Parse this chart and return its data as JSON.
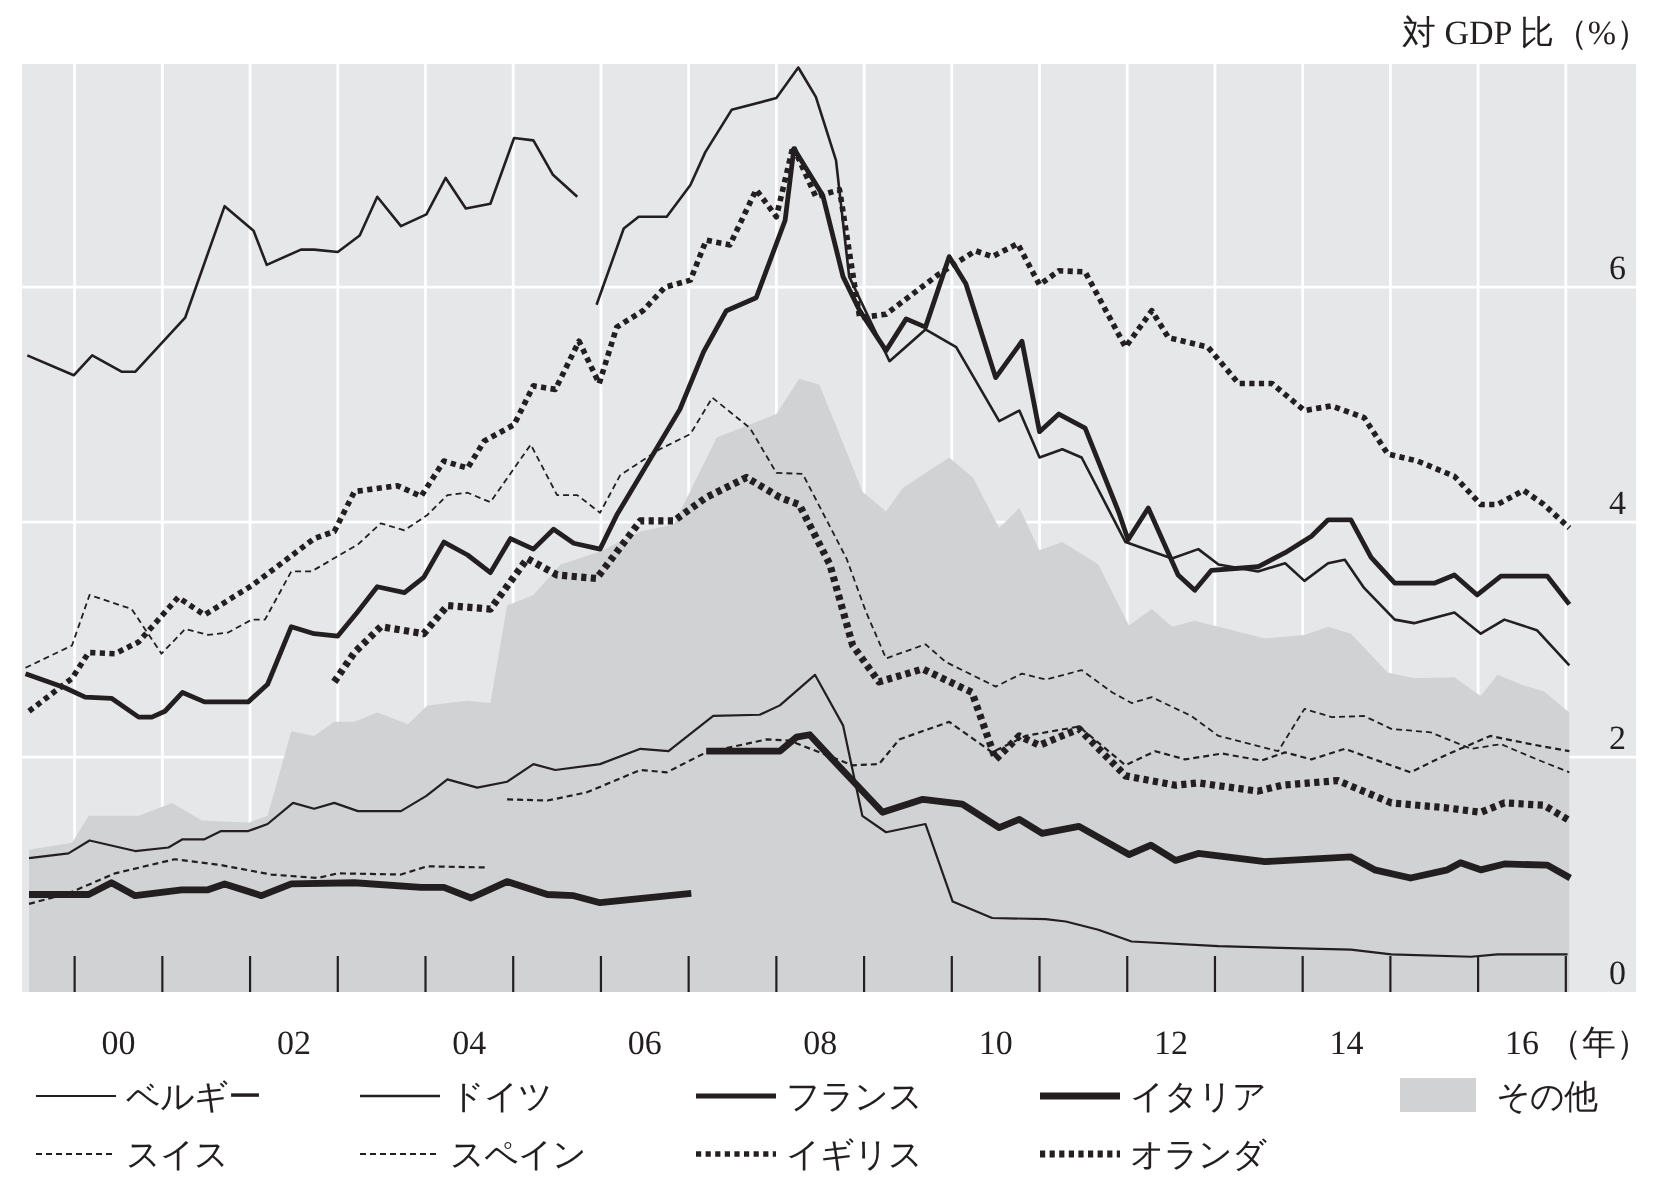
{
  "chart_data": {
    "type": "line",
    "ylabel": "対 GDP 比（%）",
    "xlabel": "（年）",
    "xlim": [
      1998.9,
      2017.3
    ],
    "ylim": [
      0,
      7.9
    ],
    "xticks": [
      {
        "value": 1999.5,
        "label": null
      },
      {
        "value": 2000,
        "label": "00"
      },
      {
        "value": 2000.5,
        "label": null
      },
      {
        "value": 2001.5,
        "label": null
      },
      {
        "value": 2002,
        "label": "02"
      },
      {
        "value": 2002.5,
        "label": null
      },
      {
        "value": 2003.5,
        "label": null
      },
      {
        "value": 2004,
        "label": "04"
      },
      {
        "value": 2004.5,
        "label": null
      },
      {
        "value": 2005.5,
        "label": null
      },
      {
        "value": 2006,
        "label": "06"
      },
      {
        "value": 2006.5,
        "label": null
      },
      {
        "value": 2007.5,
        "label": null
      },
      {
        "value": 2008,
        "label": "08"
      },
      {
        "value": 2008.5,
        "label": null
      },
      {
        "value": 2009.5,
        "label": null
      },
      {
        "value": 2010,
        "label": "10"
      },
      {
        "value": 2010.5,
        "label": null
      },
      {
        "value": 2011.5,
        "label": null
      },
      {
        "value": 2012,
        "label": "12"
      },
      {
        "value": 2012.5,
        "label": null
      },
      {
        "value": 2013.5,
        "label": null
      },
      {
        "value": 2014,
        "label": "14"
      },
      {
        "value": 2014.5,
        "label": null
      },
      {
        "value": 2015.5,
        "label": null
      },
      {
        "value": 2016,
        "label": "16"
      },
      {
        "value": 2016.5,
        "label": null
      }
    ],
    "yticks": [
      0,
      2,
      4,
      6
    ],
    "grid": true,
    "legend": "bottom",
    "series": [
      {
        "name": "その他",
        "type": "area",
        "color": "#d1d2d4",
        "x": [
          1998.98,
          1999.47,
          1999.66,
          2000.23,
          2000.61,
          2000.95,
          2001.48,
          2001.7,
          2001.97,
          2002.23,
          2002.46,
          2002.69,
          2002.95,
          2003.3,
          2003.52,
          2003.98,
          2004.24,
          2004.43,
          2004.73,
          2005.04,
          2005.49,
          2005.95,
          2006.33,
          2006.82,
          2007.5,
          2007.76,
          2007.99,
          2008.3,
          2008.48,
          2008.75,
          2008.94,
          2009.47,
          2009.74,
          2010.04,
          2010.27,
          2010.5,
          2010.76,
          2011.17,
          2011.52,
          2011.78,
          2012.01,
          2012.27,
          2013.07,
          2013.52,
          2013.79,
          2014.05,
          2014.47,
          2014.77,
          2015.23,
          2015.53,
          2015.72,
          2016.02,
          2016.25,
          2016.54
        ],
        "values": [
          1.21,
          1.27,
          1.5,
          1.5,
          1.61,
          1.46,
          1.44,
          1.5,
          2.22,
          2.18,
          2.3,
          2.3,
          2.38,
          2.28,
          2.44,
          2.48,
          2.46,
          3.29,
          3.38,
          3.64,
          3.75,
          3.92,
          3.98,
          4.72,
          4.92,
          5.22,
          5.17,
          4.6,
          4.26,
          4.09,
          4.29,
          4.55,
          4.38,
          3.95,
          4.12,
          3.76,
          3.83,
          3.64,
          3.12,
          3.26,
          3.11,
          3.16,
          3.01,
          3.04,
          3.11,
          3.05,
          2.72,
          2.67,
          2.68,
          2.52,
          2.7,
          2.61,
          2.56,
          2.38
        ]
      },
      {
        "name": "ベルギー",
        "color": "#231f20",
        "line_style": "solid",
        "x": [
          1998.98,
          1999.43,
          1999.67,
          2000.19,
          2000.57,
          2000.73,
          2000.98,
          2001.17,
          2001.48,
          2001.7,
          2001.99,
          2002.23,
          2002.46,
          2002.73,
          2003.22,
          2003.51,
          2003.75,
          2004.09,
          2004.43,
          2004.73,
          2004.98,
          2005.49,
          2005.95,
          2006.27,
          2006.78,
          2007.31,
          2007.54,
          2007.94,
          2008.26,
          2008.48,
          2008.75,
          2009.2,
          2009.51,
          2009.96,
          2010.57,
          2010.8,
          2011.17,
          2011.55,
          2012.54,
          2014.05,
          2014.51,
          2015.42,
          2015.72,
          2016.52
        ],
        "values": [
          1.14,
          1.18,
          1.29,
          1.2,
          1.23,
          1.3,
          1.3,
          1.37,
          1.37,
          1.43,
          1.61,
          1.56,
          1.61,
          1.54,
          1.54,
          1.67,
          1.81,
          1.74,
          1.79,
          1.94,
          1.89,
          1.94,
          2.07,
          2.05,
          2.35,
          2.36,
          2.44,
          2.7,
          2.27,
          1.5,
          1.36,
          1.43,
          0.77,
          0.63,
          0.62,
          0.6,
          0.53,
          0.43,
          0.39,
          0.36,
          0.32,
          0.3,
          0.32,
          0.32
        ]
      },
      {
        "name": "ドイツ",
        "color": "#231f20",
        "line_style": "solid",
        "x": [
          1998.96,
          1999.49,
          1999.7,
          2000.04,
          2000.19,
          2000.76,
          2001.02,
          2001.21,
          2001.54,
          2001.69,
          2002.08,
          2002.23,
          2002.5,
          2002.75,
          2002.95,
          2003.22,
          2003.51,
          2003.73,
          2003.96,
          2004.24,
          2004.51,
          2004.73,
          2004.95,
          2005.23
        ],
        "values": [
          5.42,
          5.25,
          5.42,
          5.28,
          5.28,
          5.74,
          6.29,
          6.69,
          6.48,
          6.19,
          6.32,
          6.32,
          6.3,
          6.44,
          6.77,
          6.52,
          6.62,
          6.93,
          6.67,
          6.71,
          7.27,
          7.25,
          6.96,
          6.77
        ]
      },
      {
        "name": "フランス",
        "color": "#231f20",
        "line_style": "solid",
        "x": [
          1998.94,
          1999.39,
          1999.62,
          1999.92,
          2000.23,
          2000.38,
          2000.53,
          2000.73,
          2000.98,
          2001.48,
          2001.7,
          2001.97,
          2002.23,
          2002.5,
          2002.73,
          2002.95,
          2003.26,
          2003.48,
          2003.71,
          2003.98,
          2004.24,
          2004.47,
          2004.73,
          2004.96,
          2005.19,
          2005.49,
          2005.68,
          2006.4,
          2006.67,
          2006.93,
          2007.27,
          2007.6,
          2007.7,
          2008.03,
          2008.26,
          2008.45,
          2008.75,
          2008.98,
          2009.2,
          2009.47,
          2009.66,
          2010.0,
          2010.3,
          2010.5,
          2010.72,
          2011.02,
          2011.4,
          2011.51,
          2011.74,
          2012.08,
          2012.27,
          2012.46,
          2012.99,
          2013.3,
          2013.6,
          2013.79,
          2014.05,
          2014.28,
          2014.55,
          2015.0,
          2015.23,
          2015.49,
          2015.76,
          2016.29,
          2016.54
        ],
        "values": [
          2.71,
          2.59,
          2.51,
          2.5,
          2.34,
          2.34,
          2.39,
          2.55,
          2.47,
          2.47,
          2.62,
          3.11,
          3.05,
          3.03,
          3.24,
          3.45,
          3.4,
          3.53,
          3.83,
          3.72,
          3.57,
          3.86,
          3.77,
          3.94,
          3.82,
          3.77,
          4.06,
          4.96,
          5.45,
          5.8,
          5.91,
          6.57,
          7.18,
          6.78,
          6.09,
          5.8,
          5.46,
          5.73,
          5.66,
          6.26,
          6.03,
          5.23,
          5.54,
          4.77,
          4.92,
          4.8,
          4.09,
          3.85,
          4.12,
          3.55,
          3.42,
          3.59,
          3.62,
          3.74,
          3.88,
          4.02,
          4.02,
          3.7,
          3.48,
          3.48,
          3.55,
          3.38,
          3.54,
          3.54,
          3.3
        ]
      },
      {
        "name": "イタリア",
        "color": "#231f20",
        "line_style": "solid",
        "x": [
          1998.98,
          1999.66,
          1999.92,
          2000.19,
          2000.72,
          2001.02,
          2001.21,
          2001.63,
          2001.97,
          2002.69,
          2003.45,
          2003.71,
          2004.02,
          2004.43,
          2004.89,
          2005.19,
          2005.49,
          2006.53
        ],
        "values": [
          0.83,
          0.83,
          0.93,
          0.82,
          0.87,
          0.87,
          0.92,
          0.82,
          0.92,
          0.93,
          0.89,
          0.89,
          0.8,
          0.94,
          0.83,
          0.82,
          0.76,
          0.84
        ]
      },
      {
        "name": "スイス",
        "color": "#231f20",
        "line_style": "dashed",
        "x": [
          1998.94,
          1999.47,
          1999.67,
          2000.15,
          2000.49,
          2000.76,
          2001.02,
          2001.25,
          2001.52,
          2001.67,
          2001.97,
          2002.2,
          2002.73,
          2002.99,
          2003.26,
          2003.52,
          2003.75,
          2003.98,
          2004.24,
          2004.7,
          2005.0,
          2005.23,
          2005.49,
          2005.72,
          2006.17,
          2006.52,
          2006.77,
          2007.2,
          2007.5,
          2007.8,
          2008.3,
          2008.52,
          2008.75,
          2009.2,
          2009.43,
          2010.0,
          2010.3,
          2010.57,
          2010.98,
          2011.33,
          2011.55,
          2011.78,
          2012.23,
          2012.54,
          2013.22,
          2013.52,
          2013.83,
          2014.2,
          2014.51,
          2014.96,
          2015.42,
          2015.76,
          2016.17,
          2016.54
        ],
        "values": [
          2.76,
          2.95,
          3.38,
          3.26,
          2.88,
          3.09,
          3.04,
          3.06,
          3.17,
          3.17,
          3.58,
          3.58,
          3.81,
          3.99,
          3.93,
          4.06,
          4.23,
          4.25,
          4.17,
          4.66,
          4.23,
          4.23,
          4.08,
          4.4,
          4.62,
          4.75,
          5.06,
          4.8,
          4.42,
          4.41,
          3.69,
          3.24,
          2.84,
          2.96,
          2.81,
          2.6,
          2.71,
          2.66,
          2.74,
          2.55,
          2.46,
          2.51,
          2.35,
          2.18,
          2.05,
          2.41,
          2.34,
          2.35,
          2.24,
          2.21,
          2.07,
          2.11,
          1.98,
          1.87
        ]
      },
      {
        "name": "スペイン",
        "color": "#231f20",
        "line_style": "dashed",
        "x": [
          1998.98,
          1999.43,
          1999.96,
          2000.64,
          2001.17,
          2001.74,
          2002.27,
          2002.5,
          2003.22,
          2003.52,
          2004.2
        ],
        "values": [
          0.75,
          0.84,
          1.01,
          1.13,
          1.08,
          1.0,
          0.97,
          1.01,
          1.0,
          1.07,
          1.06
        ]
      },
      {
        "name": "イギリス",
        "color": "#231f20",
        "line_style": "dotted",
        "x": [
          1998.98,
          1999.47,
          1999.66,
          1999.96,
          2000.23,
          2000.68,
          2000.98,
          2001.52,
          2001.93,
          2002.23,
          2002.46,
          2002.69,
          2003.18,
          2003.45,
          2003.71,
          2003.98,
          2004.17,
          2004.51,
          2004.73,
          2004.98,
          2005.25,
          2005.48,
          2005.68,
          2005.98,
          2006.23,
          2006.52,
          2006.7,
          2006.97,
          2007.27,
          2007.5,
          2007.69,
          2007.95,
          2008.22,
          2008.45,
          2008.75,
          2009.35,
          2009.77,
          2009.96,
          2010.25,
          2010.5,
          2010.72,
          2011.02,
          2011.48,
          2011.78,
          2011.97,
          2012.42,
          2012.77,
          2013.15,
          2013.52,
          2013.83,
          2014.2,
          2014.47,
          2014.81,
          2015.23,
          2015.53,
          2015.72,
          2016.02,
          2016.25,
          2016.54
        ],
        "values": [
          2.39,
          2.67,
          2.89,
          2.88,
          2.98,
          3.36,
          3.21,
          3.46,
          3.69,
          3.86,
          3.92,
          4.26,
          4.31,
          4.22,
          4.52,
          4.46,
          4.69,
          4.83,
          5.16,
          5.13,
          5.54,
          5.18,
          5.66,
          5.8,
          6.0,
          6.06,
          6.4,
          6.36,
          6.83,
          6.6,
          7.2,
          6.77,
          6.83,
          5.74,
          5.77,
          6.11,
          6.31,
          6.26,
          6.37,
          6.02,
          6.14,
          6.13,
          5.49,
          5.8,
          5.57,
          5.49,
          5.18,
          5.18,
          4.95,
          4.99,
          4.89,
          4.58,
          4.52,
          4.39,
          4.15,
          4.15,
          4.27,
          4.15,
          3.95
        ]
      },
      {
        "name": "オランダ",
        "color": "#231f20",
        "line_style": "dotted",
        "x": [
          2002.46,
          2002.69,
          2002.99,
          2003.48,
          2003.75,
          2004.24,
          2004.66,
          2005.0,
          2005.45,
          2005.95,
          2006.33,
          2006.7,
          2007.16,
          2007.54,
          2007.76,
          2008.11,
          2008.37,
          2008.67,
          2009.17,
          2009.73,
          2010.0,
          2010.27,
          2010.5,
          2010.95,
          2011.48,
          2012.05,
          2012.31,
          2012.99,
          2013.26,
          2013.9,
          2014.51,
          2015.11,
          2015.53,
          2015.8,
          2016.25,
          2016.54
        ],
        "values": [
          2.64,
          2.89,
          3.11,
          3.05,
          3.29,
          3.26,
          3.69,
          3.55,
          3.52,
          4.01,
          4.01,
          4.21,
          4.38,
          4.21,
          4.15,
          3.64,
          2.95,
          2.64,
          2.75,
          2.55,
          1.98,
          2.18,
          2.1,
          2.24,
          1.84,
          1.76,
          1.78,
          1.71,
          1.76,
          1.8,
          1.61,
          1.57,
          1.53,
          1.61,
          1.59,
          1.46
        ]
      },
      {
        "color": "#231f20",
        "line_style": "solid",
        "x": [
          2005.45,
          2005.76,
          2005.93,
          2006.25,
          2006.52,
          2006.69,
          2006.99,
          2007.5,
          2007.75,
          2007.95,
          2008.18,
          2008.33,
          2008.79,
          2009.2,
          2009.55,
          2010.04,
          2010.27,
          2010.5,
          2010.76,
          2010.98,
          2011.48,
          2012.01,
          2012.31,
          2012.54,
          2012.99,
          2013.3,
          2013.52,
          2013.79,
          2013.98,
          2014.2,
          2014.55,
          2014.77,
          2015.23,
          2015.53,
          2015.8,
          2016.17,
          2016.54
        ],
        "values": [
          5.85,
          6.5,
          6.6,
          6.6,
          6.87,
          7.15,
          7.51,
          7.61,
          7.87,
          7.62,
          7.08,
          6.09,
          5.37,
          5.64,
          5.49,
          4.86,
          4.95,
          4.55,
          4.62,
          4.55,
          3.83,
          3.69,
          3.77,
          3.64,
          3.58,
          3.65,
          3.5,
          3.65,
          3.68,
          3.44,
          3.17,
          3.14,
          3.23,
          3.05,
          3.17,
          3.08,
          2.78
        ]
      },
      {
        "color": "#231f20",
        "line_style": "solid",
        "x": [
          2006.7,
          2007.54,
          2007.73,
          2007.88,
          2008.14,
          2008.71,
          2009.17,
          2009.62,
          2010.04,
          2010.27,
          2010.53,
          2010.95,
          2011.52,
          2011.77,
          2012.05,
          2012.31,
          2013.07,
          2014.05,
          2014.32,
          2014.73,
          2015.15,
          2015.3,
          2015.53,
          2015.8,
          2016.29,
          2016.55
        ],
        "values": [
          2.05,
          2.05,
          2.17,
          2.19,
          1.98,
          1.53,
          1.64,
          1.6,
          1.4,
          1.47,
          1.35,
          1.41,
          1.17,
          1.25,
          1.12,
          1.18,
          1.11,
          1.15,
          1.04,
          0.97,
          1.04,
          1.1,
          1.04,
          1.09,
          1.08,
          0.97
        ]
      },
      {
        "color": "#231f20",
        "line_style": "dashed",
        "x": [
          2004.43,
          2004.89,
          2005.34,
          2005.95,
          2006.25,
          2006.7,
          2007.39,
          2007.65,
          2008.37,
          2008.67,
          2008.9,
          2009.47,
          2009.96,
          2010.34,
          2010.95,
          2011.48,
          2011.82,
          2012.16,
          2012.58,
          2013.03,
          2013.3,
          2013.6,
          2013.98,
          2014.73,
          2015.11,
          2015.64,
          2016.1,
          2016.54
        ],
        "values": [
          1.64,
          1.63,
          1.7,
          1.89,
          1.87,
          2.04,
          2.15,
          2.14,
          1.93,
          1.94,
          2.15,
          2.3,
          2.04,
          2.18,
          2.26,
          1.93,
          2.05,
          1.98,
          2.03,
          1.97,
          2.04,
          1.98,
          2.07,
          1.87,
          2.01,
          2.18,
          2.11,
          2.05
        ]
      }
    ]
  }
}
